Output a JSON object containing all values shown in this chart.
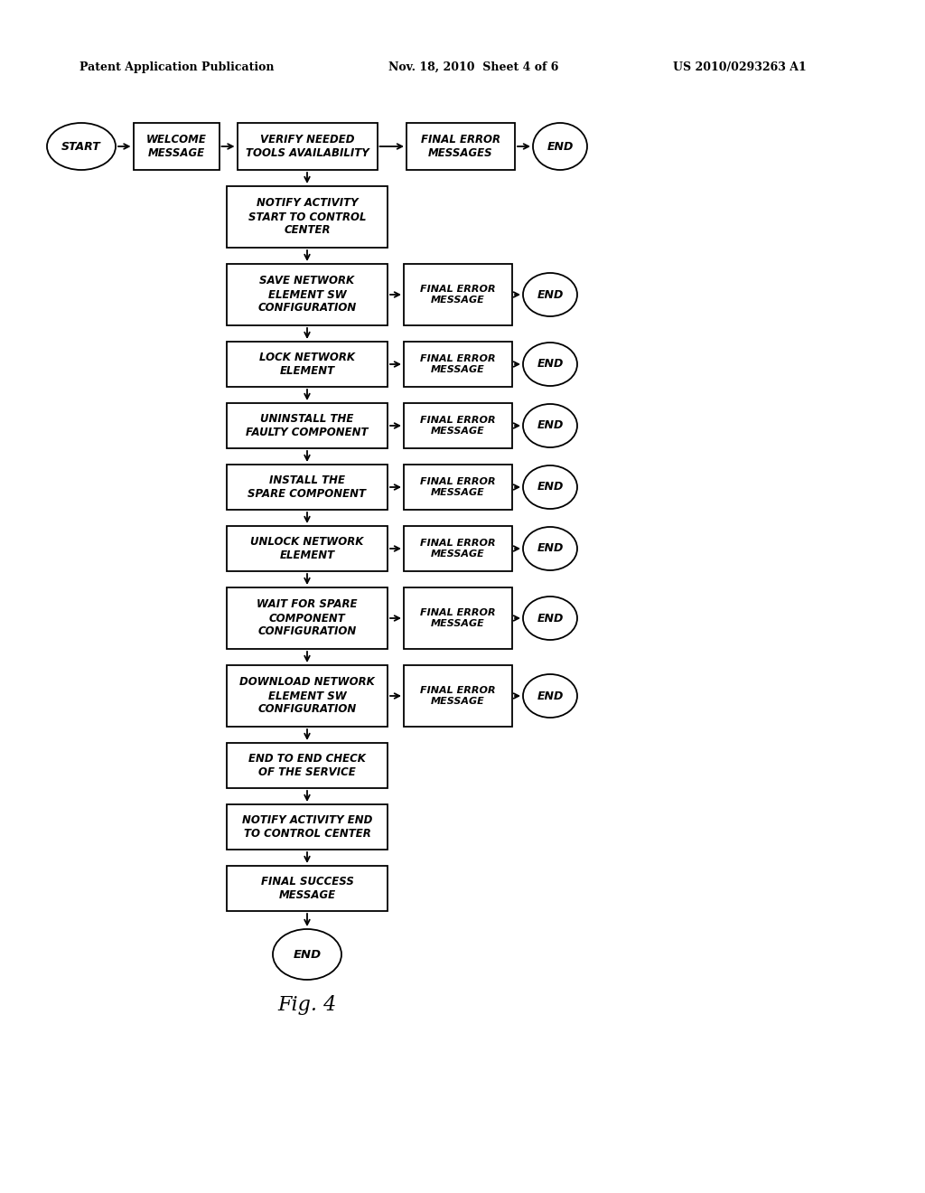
{
  "header_left": "Patent Application Publication",
  "header_mid": "Nov. 18, 2010  Sheet 4 of 6",
  "header_right": "US 2010/0293263 A1",
  "fig_label": "Fig. 4",
  "bg_color": "#ffffff",
  "steps": [
    {
      "text": "NOTIFY ACTIVITY\nSTART TO CONTROL\nCENTER",
      "has_error": false,
      "lines": 3
    },
    {
      "text": "SAVE NETWORK\nELEMENT SW\nCONFIGURATION",
      "has_error": true,
      "lines": 3
    },
    {
      "text": "LOCK NETWORK\nELEMENT",
      "has_error": true,
      "lines": 2
    },
    {
      "text": "UNINSTALL THE\nFAULTY COMPONENT",
      "has_error": true,
      "lines": 2
    },
    {
      "text": "INSTALL THE\nSPARE COMPONENT",
      "has_error": true,
      "lines": 2
    },
    {
      "text": "UNLOCK NETWORK\nELEMENT",
      "has_error": true,
      "lines": 2
    },
    {
      "text": "WAIT FOR SPARE\nCOMPONENT\nCONFIGURATION",
      "has_error": true,
      "lines": 3
    },
    {
      "text": "DOWNLOAD NETWORK\nELEMENT SW\nCONFIGURATION",
      "has_error": true,
      "lines": 3
    },
    {
      "text": "END TO END CHECK\nOF THE SERVICE",
      "has_error": false,
      "lines": 2
    },
    {
      "text": "NOTIFY ACTIVITY END\nTO CONTROL CENTER",
      "has_error": false,
      "lines": 2
    },
    {
      "text": "FINAL SUCCESS\nMESSAGE",
      "has_error": false,
      "lines": 2
    }
  ]
}
